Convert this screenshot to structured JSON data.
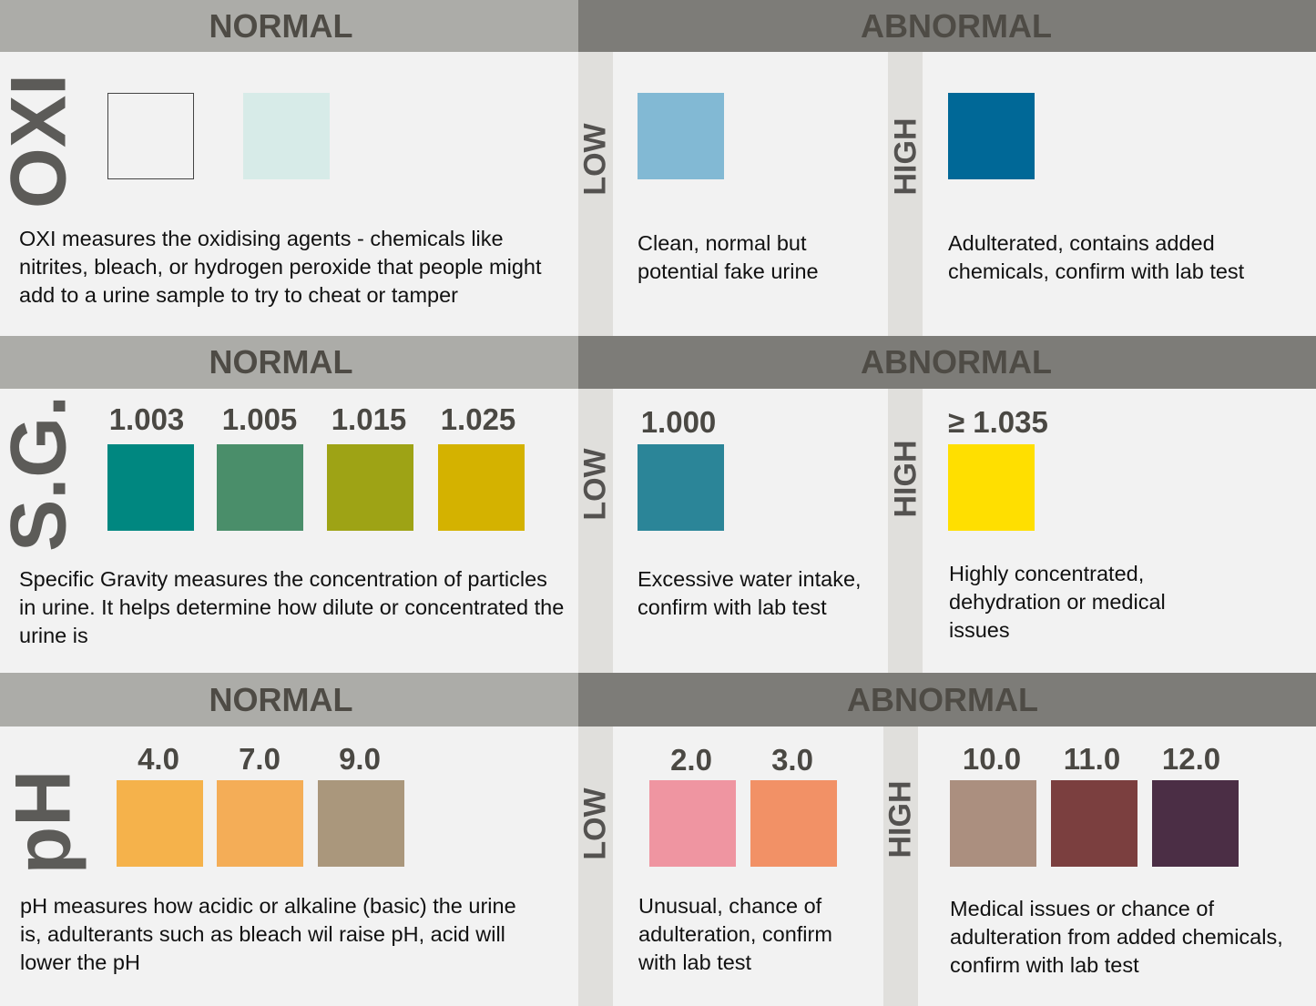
{
  "headers": {
    "normal": "NORMAL",
    "abnormal": "ABNORMAL"
  },
  "side_labels": {
    "low": "LOW",
    "high": "HIGH"
  },
  "oxi": {
    "label": "OXI",
    "normal_colors": [
      "#f2f2f2",
      "#d7ebe8"
    ],
    "low_color": "#82b9d4",
    "high_color": "#006897",
    "normal_desc": "OXI measures the oxidising agents - chemicals like nitrites, bleach, or hydrogen peroxide that people might add to a urine sample to try to cheat or tamper",
    "low_desc": "Clean, normal but potential fake urine",
    "high_desc": "Adulterated, contains added chemicals, confirm with lab test"
  },
  "sg": {
    "label": "S.G.",
    "normal": [
      {
        "value": "1.003",
        "color": "#008780"
      },
      {
        "value": "1.005",
        "color": "#4a8e6a"
      },
      {
        "value": "1.015",
        "color": "#9ea315"
      },
      {
        "value": "1.025",
        "color": "#d4b200"
      }
    ],
    "low": {
      "value": "1.000",
      "color": "#2b8598"
    },
    "high": {
      "value": "≥ 1.035",
      "color": "#ffdf00"
    },
    "normal_desc": "Specific Gravity measures the concentration of particles in urine. It helps determine how dilute or concentrated the urine is",
    "low_desc": "Excessive water intake, confirm with lab test",
    "high_desc": "Highly concentrated, dehydration or medical issues"
  },
  "ph": {
    "label": "pH",
    "normal": [
      {
        "value": "4.0",
        "color": "#f5b24b"
      },
      {
        "value": "7.0",
        "color": "#f4ad57"
      },
      {
        "value": "9.0",
        "color": "#aa977c"
      }
    ],
    "low": [
      {
        "value": "2.0",
        "color": "#ef95a1"
      },
      {
        "value": "3.0",
        "color": "#f29166"
      }
    ],
    "high": [
      {
        "value": "10.0",
        "color": "#ab8f7f"
      },
      {
        "value": "11.0",
        "color": "#7b3f3f"
      },
      {
        "value": "12.0",
        "color": "#4b2e45"
      }
    ],
    "normal_desc": "pH measures how acidic or alkaline (basic) the urine is, adulterants such as bleach wil raise pH, acid will lower the pH",
    "low_desc": "Unusual, chance of adulteration, confirm with lab test",
    "high_desc": "Medical issues or chance of adulteration from added chemicals, confirm with lab test"
  }
}
